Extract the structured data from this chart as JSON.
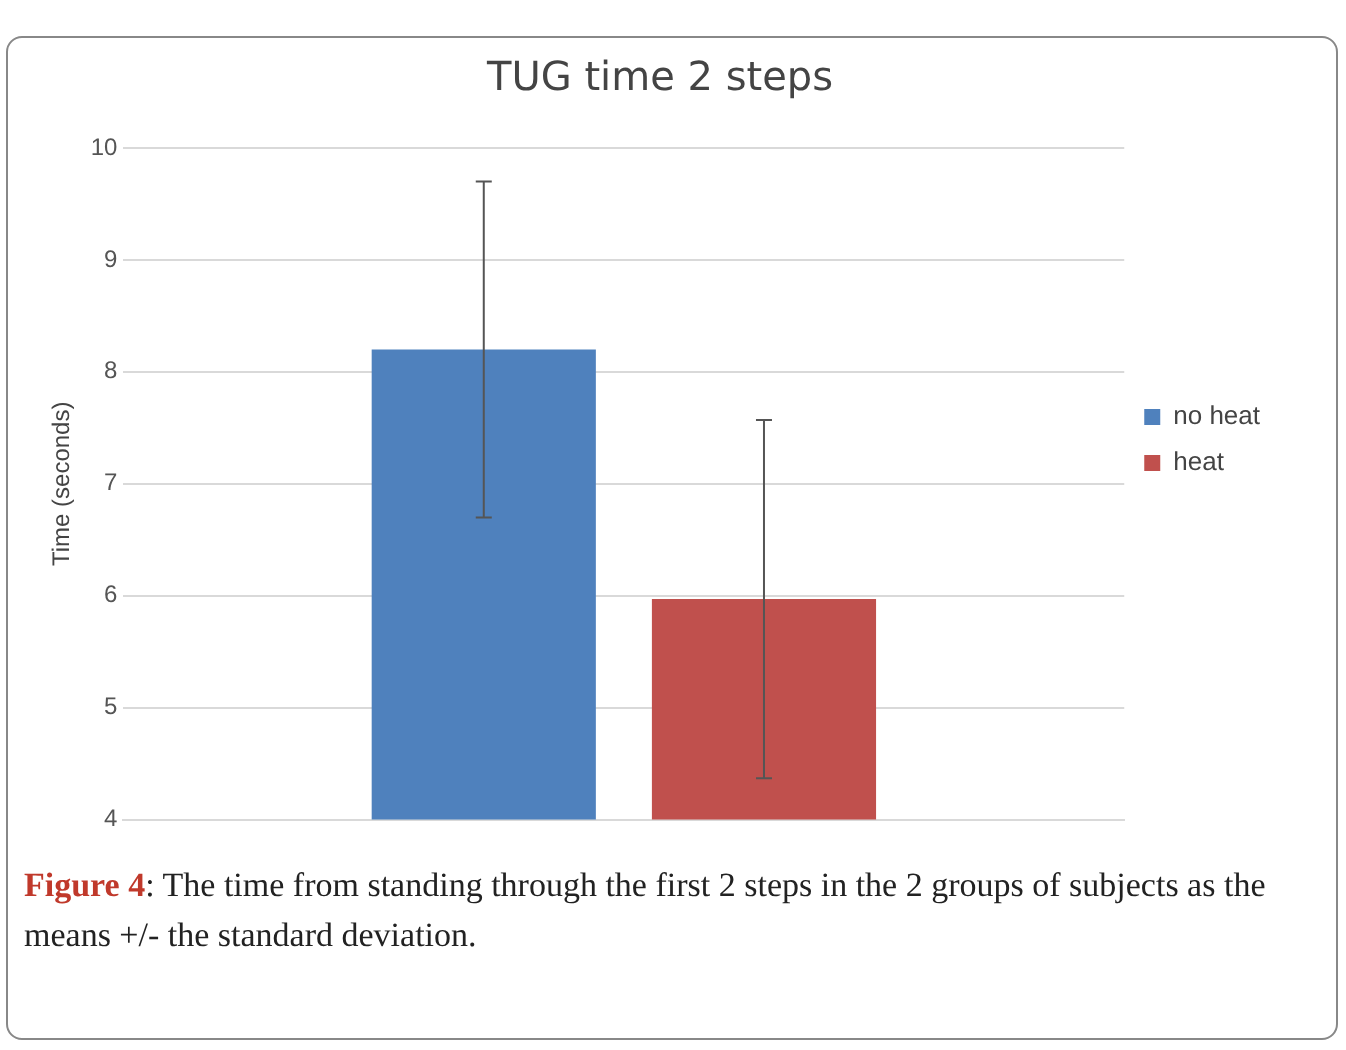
{
  "chart_data": {
    "type": "bar",
    "title": "TUG time 2 steps",
    "ylabel": "Time (seconds)",
    "categories": [
      null
    ],
    "series": [
      {
        "name": "no heat",
        "color": "#4f81bd",
        "values": [
          8.2
        ],
        "errors": [
          1.5
        ]
      },
      {
        "name": "heat",
        "color": "#c0504d",
        "values": [
          5.97
        ],
        "errors": [
          1.6
        ]
      }
    ],
    "ylim": [
      4,
      10
    ],
    "yticks": [
      4,
      5,
      6,
      7,
      8,
      9,
      10
    ],
    "grid": "y",
    "legend": "right",
    "annotations": [
      "Figure 4: The time from standing through the first 2 steps in the 2 groups of subjects as the means +/- the standard deviation."
    ]
  }
}
